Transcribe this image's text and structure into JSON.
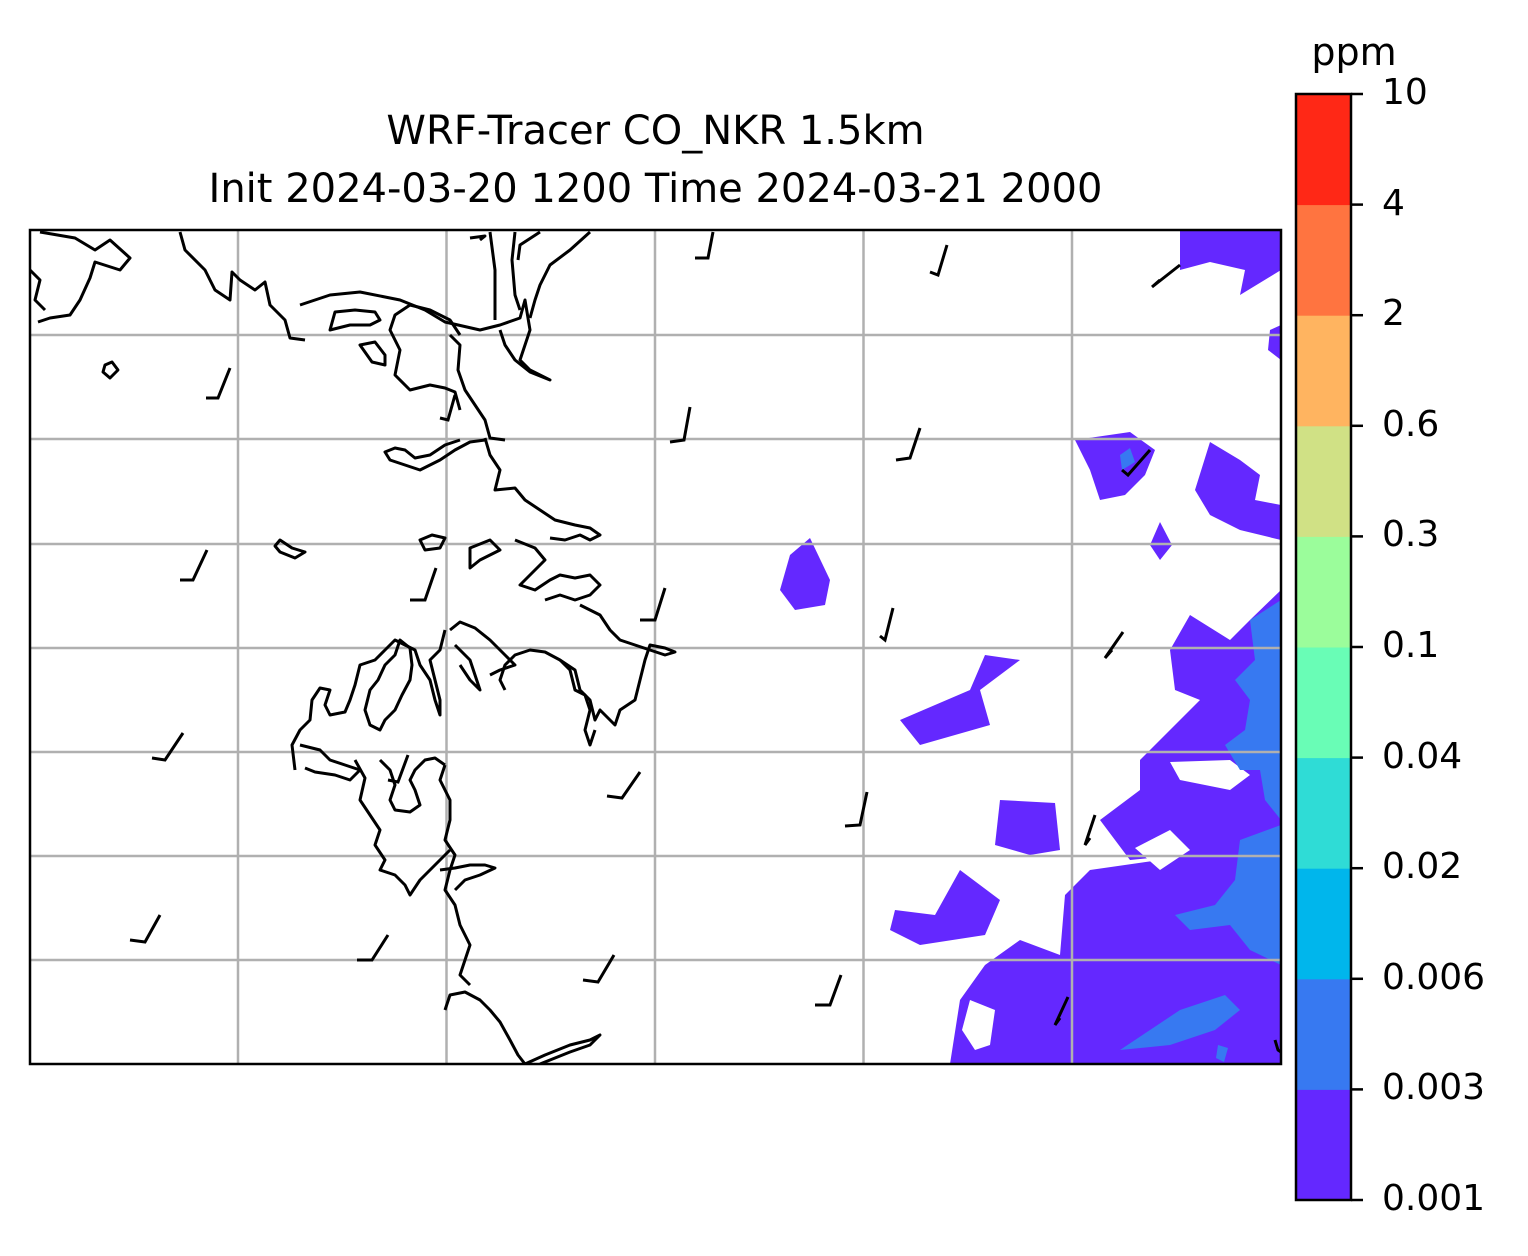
{
  "title": {
    "line1": "WRF-Tracer CO_NKR 1.5km",
    "line2": "Init 2024-03-20 1200 Time 2024-03-21 2000"
  },
  "colorbar": {
    "unit": "ppm",
    "levels": [
      "0.001",
      "0.003",
      "0.006",
      "0.02",
      "0.04",
      "0.1",
      "0.3",
      "0.6",
      "2",
      "4",
      "10"
    ],
    "colors": [
      "#6428ff",
      "#3779f1",
      "#00b6ec",
      "#2fdcd6",
      "#69fdb6",
      "#9bfd9b",
      "#d0e185",
      "#ffb460",
      "#ff7440",
      "#ff2816"
    ]
  },
  "map": {
    "grid": "on",
    "gridline_color": "#b0b0b0",
    "coastline_color": "#000000",
    "wind_barbs": "shown"
  }
}
